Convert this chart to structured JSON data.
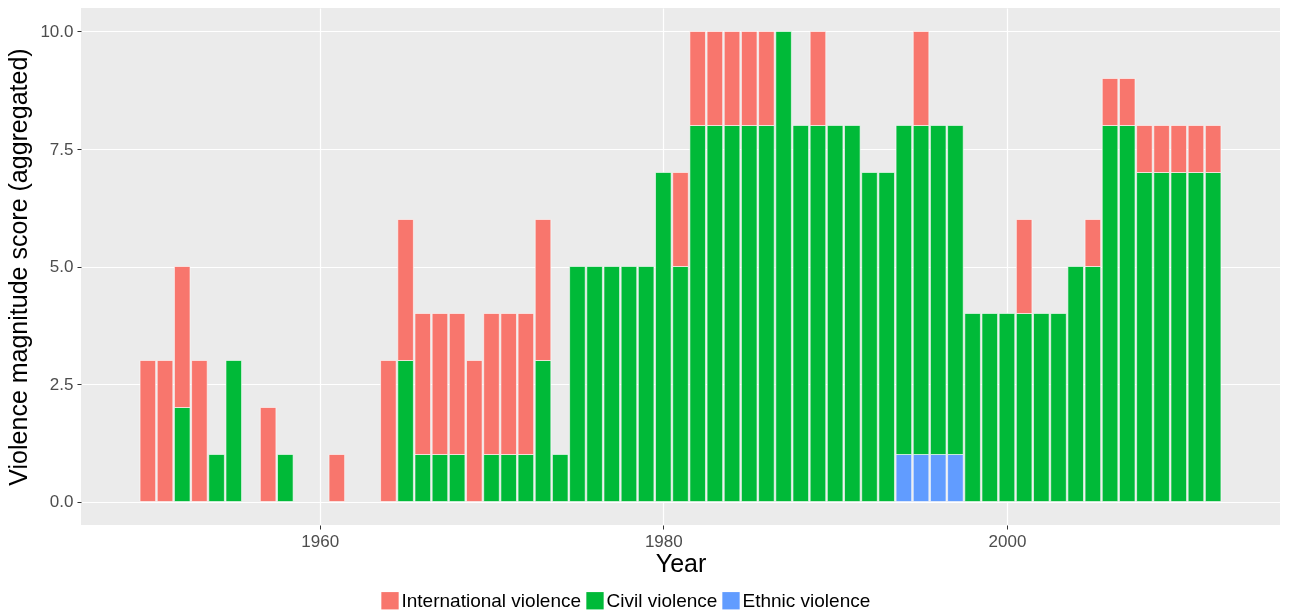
{
  "chart_data": {
    "type": "bar",
    "stacked": true,
    "xlabel": "Year",
    "ylabel": "Violence magnitude score (aggregated)",
    "x": [
      1950,
      1951,
      1952,
      1953,
      1954,
      1955,
      1956,
      1957,
      1958,
      1959,
      1960,
      1961,
      1962,
      1963,
      1964,
      1965,
      1966,
      1967,
      1968,
      1969,
      1970,
      1971,
      1972,
      1973,
      1974,
      1975,
      1976,
      1977,
      1978,
      1979,
      1980,
      1981,
      1982,
      1983,
      1984,
      1985,
      1986,
      1987,
      1988,
      1989,
      1990,
      1991,
      1992,
      1993,
      1994,
      1995,
      1996,
      1997,
      1998,
      1999,
      2000,
      2001,
      2002,
      2003,
      2004,
      2005,
      2006,
      2007,
      2008,
      2009,
      2010,
      2011,
      2012
    ],
    "series": [
      {
        "name": "Ethnic violence",
        "color": "#619cff",
        "values": [
          null,
          null,
          null,
          null,
          null,
          null,
          null,
          null,
          null,
          null,
          null,
          null,
          null,
          null,
          null,
          null,
          null,
          null,
          null,
          null,
          null,
          null,
          null,
          null,
          null,
          null,
          null,
          null,
          null,
          null,
          null,
          null,
          null,
          null,
          null,
          null,
          null,
          null,
          null,
          null,
          null,
          null,
          null,
          null,
          1,
          1,
          1,
          1,
          null,
          null,
          null,
          null,
          null,
          null,
          null,
          null,
          null,
          null,
          null,
          null,
          null,
          null,
          null
        ]
      },
      {
        "name": "Civil violence",
        "color": "#00ba38",
        "values": [
          null,
          null,
          2,
          null,
          1,
          3,
          null,
          null,
          1,
          null,
          null,
          null,
          null,
          null,
          null,
          3,
          1,
          1,
          1,
          null,
          1,
          1,
          1,
          3,
          1,
          5,
          5,
          5,
          5,
          5,
          7,
          5,
          8,
          8,
          8,
          8,
          8,
          10,
          8,
          8,
          8,
          8,
          7,
          7,
          7,
          7,
          7,
          7,
          4,
          4,
          4,
          4,
          4,
          4,
          5,
          5,
          8,
          8,
          7,
          7,
          7,
          7,
          7
        ]
      },
      {
        "name": "International violence",
        "color": "#f8766d",
        "values": [
          3,
          3,
          3,
          3,
          null,
          null,
          0,
          2,
          null,
          0,
          0,
          1,
          0,
          0,
          3,
          3,
          3,
          3,
          3,
          3,
          3,
          3,
          3,
          3,
          null,
          null,
          null,
          null,
          null,
          null,
          null,
          2,
          2,
          2,
          2,
          2,
          2,
          null,
          null,
          2,
          null,
          null,
          null,
          null,
          null,
          2,
          null,
          null,
          null,
          null,
          null,
          2,
          null,
          null,
          null,
          1,
          1,
          1,
          1,
          1,
          1,
          1,
          1
        ]
      }
    ],
    "xlim": [
      1946.4,
      2015.6
    ],
    "xticks": [
      1960,
      1980,
      2000
    ],
    "ylim": [
      -0.5,
      10.5
    ],
    "yticks": [
      {
        "value": 0,
        "label": "0.0"
      },
      2.5,
      {
        "value": 5,
        "label": "5.0"
      },
      7.5,
      {
        "value": 10,
        "label": "10.0"
      }
    ],
    "grid": true,
    "legend": "bottom"
  }
}
